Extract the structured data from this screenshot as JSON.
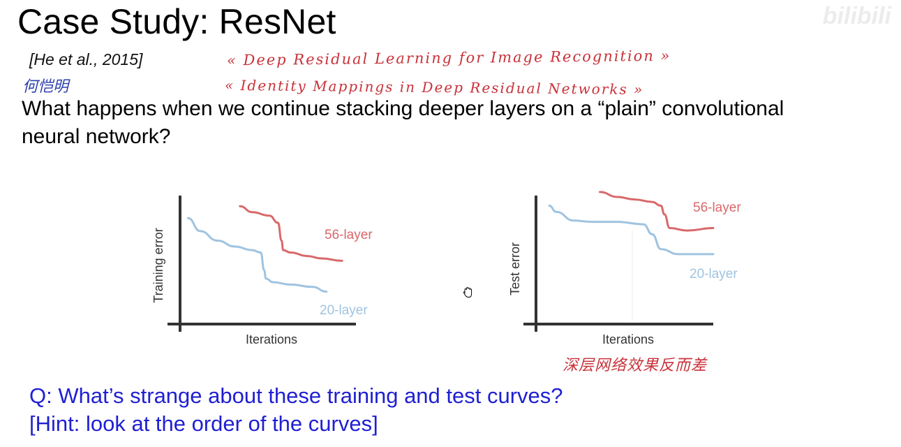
{
  "slide": {
    "title": "Case Study: ResNet",
    "citation": "[He et al., 2015]",
    "question_line1": "What happens when we continue stacking deeper layers on a “plain” convolutional",
    "question_line2": "neural network?",
    "q_text": "Q: What’s strange about these training and test curves?",
    "hint_text": "[Hint: look at the order of the curves]"
  },
  "annotations": {
    "author_cn": "何恺明",
    "paper1": "« Deep Residual Learning for Image Recognition »",
    "paper2": "« Identity Mappings in Deep Residual Networks »",
    "deep_note_cn": "深层网络效果反而差"
  },
  "watermark": "bilibili",
  "colors": {
    "layer56": "#d9686a",
    "layer20": "#9fc3e0",
    "axis": "#333333",
    "question_blue": "#1f1fd2",
    "handwriting_red": "#c8323a",
    "handwriting_blue": "#2b3fb0"
  },
  "chart_data": [
    {
      "type": "line",
      "ylabel": "Training error",
      "xlabel": "Iterations",
      "xlim": [
        0,
        100
      ],
      "ylim": [
        0,
        100
      ],
      "series": [
        {
          "name": "56-layer",
          "x": [
            33,
            40,
            50,
            55,
            57,
            58,
            62,
            72,
            80,
            92
          ],
          "y": [
            94,
            89,
            86,
            80,
            65,
            57,
            55,
            52,
            50,
            48
          ]
        },
        {
          "name": "20-layer",
          "x": [
            3,
            10,
            20,
            30,
            40,
            45,
            47,
            48,
            52,
            62,
            75,
            83
          ],
          "y": [
            84,
            73,
            65,
            60,
            57,
            55,
            40,
            33,
            30,
            28,
            26,
            22
          ]
        }
      ]
    },
    {
      "type": "line",
      "ylabel": "Test error",
      "xlabel": "Iterations",
      "xlim": [
        0,
        100
      ],
      "ylim": [
        0,
        100
      ],
      "series": [
        {
          "name": "56-layer",
          "x": [
            35,
            45,
            55,
            65,
            70,
            72,
            75,
            85,
            100
          ],
          "y": [
            104,
            100,
            98,
            96,
            93,
            86,
            75,
            73,
            75
          ]
        },
        {
          "name": "20-layer",
          "x": [
            6,
            10,
            20,
            30,
            45,
            60,
            65,
            70,
            80,
            100
          ],
          "y": [
            93,
            88,
            81,
            80,
            80,
            78,
            70,
            58,
            54,
            54
          ]
        }
      ]
    }
  ]
}
